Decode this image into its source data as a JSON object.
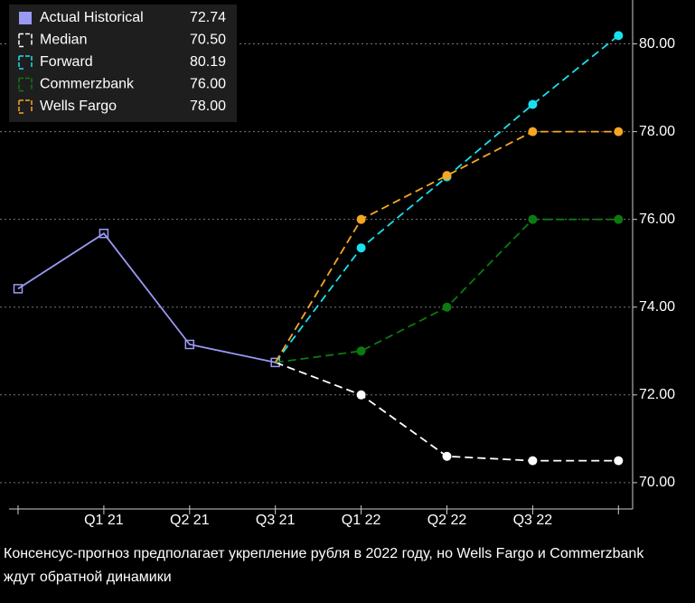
{
  "chart_data": {
    "type": "line",
    "categories": [
      null,
      "Q1 21",
      "Q2 21",
      "Q3 21",
      "Q1 22",
      "Q2 22",
      "Q3 22",
      null
    ],
    "series": [
      {
        "name": "Actual Historical",
        "color": "#9a9af5",
        "marker": "square",
        "dashed": false,
        "legend_value": {
          "value": 72.74,
          "label": "72.74"
        },
        "values": [
          74.42,
          75.68,
          73.15,
          72.74,
          null,
          null,
          null,
          null
        ]
      },
      {
        "name": "Median",
        "color": "#ffffff",
        "marker": "circle",
        "dashed": true,
        "legend_value": {
          "value": 70.5,
          "label": "70.50"
        },
        "values": [
          null,
          null,
          null,
          72.74,
          72.0,
          70.6,
          70.5,
          70.5
        ]
      },
      {
        "name": "Forward",
        "color": "#19e0f0",
        "marker": "circle",
        "dashed": true,
        "legend_value": {
          "value": 80.19,
          "label": "80.19"
        },
        "values": [
          null,
          null,
          null,
          72.74,
          75.35,
          76.97,
          78.62,
          80.19
        ]
      },
      {
        "name": "Commerzbank",
        "color": "#0c7a10",
        "marker": "circle",
        "dashed": true,
        "legend_value": {
          "value": 76,
          "label": "76.00"
        },
        "values": [
          null,
          null,
          null,
          72.74,
          73.0,
          74.0,
          76.0,
          76.0
        ]
      },
      {
        "name": "Wells Fargo",
        "color": "#f5a623",
        "marker": "circle",
        "dashed": true,
        "legend_value": {
          "value": 78,
          "label": "78.00"
        },
        "values": [
          null,
          null,
          null,
          72.74,
          76.0,
          77.0,
          78.0,
          78.0
        ]
      }
    ],
    "ylim": [
      69.4,
      81.0
    ],
    "yticks": [
      {
        "value": 70,
        "label": "70.00"
      },
      {
        "value": 72,
        "label": "72.00"
      },
      {
        "value": 74,
        "label": "74.00"
      },
      {
        "value": 76,
        "label": "76.00"
      },
      {
        "value": 78,
        "label": "78.00"
      },
      {
        "value": 80,
        "label": "80.00"
      }
    ],
    "grid": true,
    "legend": "upper left",
    "caption": "Консенсус-прогноз предполагает укрепление рубля в 2022 году, но Wells Fargo и Commerzbank ждут обратной динамики"
  }
}
